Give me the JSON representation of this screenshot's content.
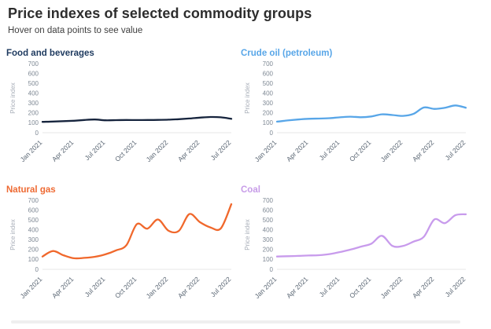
{
  "page": {
    "title": "Price indexes of selected commodity groups",
    "subtitle": "Hover on data points to see value"
  },
  "chart_data": [
    {
      "type": "line",
      "title": "Food and beverages",
      "title_color": "#1e3a5f",
      "line_color": "#16243d",
      "ylabel": "Price index",
      "xlabel": "",
      "ylim": [
        0,
        700
      ],
      "yticks": [
        0,
        100,
        200,
        300,
        400,
        500,
        600,
        700
      ],
      "grid": "off",
      "legend": "none",
      "categories": [
        "Jan 2021",
        "Feb 2021",
        "Mar 2021",
        "Apr 2021",
        "May 2021",
        "Jun 2021",
        "Jul 2021",
        "Aug 2021",
        "Sep 2021",
        "Oct 2021",
        "Nov 2021",
        "Dec 2021",
        "Jan 2022",
        "Feb 2022",
        "Mar 2022",
        "Apr 2022",
        "May 2022",
        "Jun 2022",
        "Jul 2022"
      ],
      "xtick_labels": [
        "Jan 2021",
        "Apr 2021",
        "Jul 2021",
        "Oct 2021",
        "Jan 2022",
        "Apr 2022",
        "Jul 2022"
      ],
      "values": [
        110,
        113,
        117,
        121,
        129,
        134,
        126,
        127,
        129,
        128,
        129,
        130,
        132,
        137,
        144,
        153,
        159,
        156,
        141
      ]
    },
    {
      "type": "line",
      "title": "Crude oil (petroleum)",
      "title_color": "#58a6e8",
      "line_color": "#58a6e8",
      "ylabel": "Price index",
      "xlabel": "",
      "ylim": [
        0,
        700
      ],
      "yticks": [
        0,
        100,
        200,
        300,
        400,
        500,
        600,
        700
      ],
      "grid": "off",
      "legend": "none",
      "categories": [
        "Jan 2021",
        "Feb 2021",
        "Mar 2021",
        "Apr 2021",
        "May 2021",
        "Jun 2021",
        "Jul 2021",
        "Aug 2021",
        "Sep 2021",
        "Oct 2021",
        "Nov 2021",
        "Dec 2021",
        "Jan 2022",
        "Feb 2022",
        "Mar 2022",
        "Apr 2022",
        "May 2022",
        "Jun 2022",
        "Jul 2022"
      ],
      "xtick_labels": [
        "Jan 2021",
        "Apr 2021",
        "Jul 2021",
        "Oct 2021",
        "Jan 2022",
        "Apr 2022",
        "Jul 2022"
      ],
      "values": [
        112,
        124,
        134,
        141,
        143,
        147,
        156,
        162,
        157,
        165,
        186,
        179,
        170,
        190,
        255,
        241,
        252,
        276,
        253
      ]
    },
    {
      "type": "line",
      "title": "Natural gas",
      "title_color": "#ee6a33",
      "line_color": "#f0682c",
      "ylabel": "Price index",
      "xlabel": "",
      "ylim": [
        0,
        700
      ],
      "yticks": [
        0,
        100,
        200,
        300,
        400,
        500,
        600,
        700
      ],
      "grid": "off",
      "legend": "none",
      "categories": [
        "Jan 2021",
        "Feb 2021",
        "Mar 2021",
        "Apr 2021",
        "May 2021",
        "Jun 2021",
        "Jul 2021",
        "Aug 2021",
        "Sep 2021",
        "Oct 2021",
        "Nov 2021",
        "Dec 2021",
        "Jan 2022",
        "Feb 2022",
        "Mar 2022",
        "Apr 2022",
        "May 2022",
        "Jun 2022",
        "Jul 2022"
      ],
      "xtick_labels": [
        "Jan 2021",
        "Apr 2021",
        "Jul 2021",
        "Oct 2021",
        "Jan 2022",
        "Apr 2022",
        "Jul 2022"
      ],
      "values": [
        130,
        185,
        142,
        112,
        116,
        127,
        152,
        192,
        245,
        458,
        412,
        505,
        392,
        390,
        560,
        478,
        425,
        415,
        660
      ]
    },
    {
      "type": "line",
      "title": "Coal",
      "title_color": "#c79ce8",
      "line_color": "#c89bec",
      "ylabel": "Price index",
      "xlabel": "",
      "ylim": [
        0,
        700
      ],
      "yticks": [
        0,
        100,
        200,
        300,
        400,
        500,
        600,
        700
      ],
      "grid": "off",
      "legend": "none",
      "categories": [
        "Jan 2021",
        "Feb 2021",
        "Mar 2021",
        "Apr 2021",
        "May 2021",
        "Jun 2021",
        "Jul 2021",
        "Aug 2021",
        "Sep 2021",
        "Oct 2021",
        "Nov 2021",
        "Dec 2021",
        "Jan 2022",
        "Feb 2022",
        "Mar 2022",
        "Apr 2022",
        "May 2022",
        "Jun 2022",
        "Jul 2022"
      ],
      "xtick_labels": [
        "Jan 2021",
        "Apr 2021",
        "Jul 2021",
        "Oct 2021",
        "Jan 2022",
        "Apr 2022",
        "Jul 2022"
      ],
      "values": [
        130,
        133,
        136,
        140,
        143,
        154,
        175,
        200,
        230,
        260,
        340,
        237,
        236,
        280,
        330,
        505,
        468,
        548,
        558
      ]
    }
  ]
}
